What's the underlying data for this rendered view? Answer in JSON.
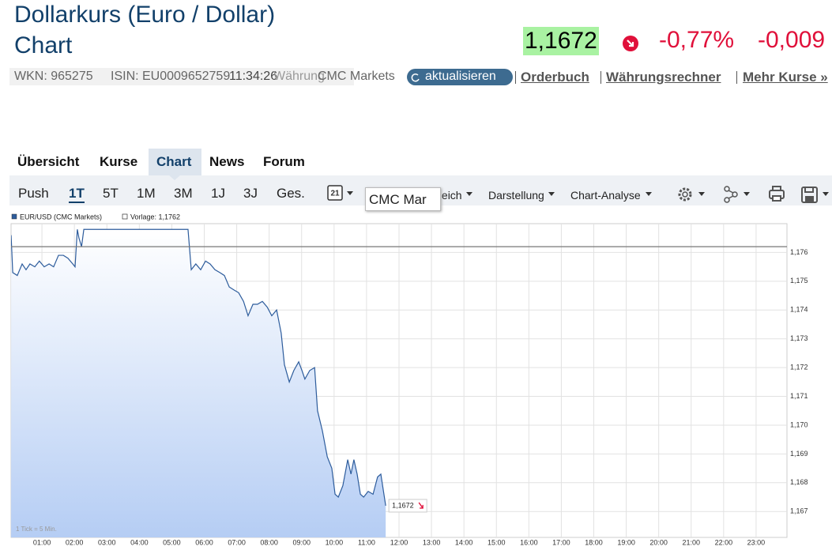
{
  "header": {
    "title": "Dollarkurs (Euro / Dollar)",
    "subtitle": "Chart",
    "price": "1,1672",
    "change_percent": "-0,77%",
    "change_absolute": "-0,009"
  },
  "info_bar": {
    "wkn": "WKN: 965275",
    "isin": "ISIN: EU0009652759",
    "time": "11:34:26",
    "currency": "Währung",
    "exchange": "CMC Markets",
    "refresh_button": "aktualisieren",
    "links": [
      "Orderbuch",
      "Währungsrechner",
      "Mehr Kurse »"
    ]
  },
  "tabs": [
    "Übersicht",
    "Kurse",
    "Chart",
    "News",
    "Forum"
  ],
  "toolbar": {
    "ranges": [
      "Push",
      "1T",
      "5T",
      "1M",
      "3M",
      "1J",
      "3J",
      "Ges."
    ],
    "calendar_day": "21",
    "menus": [
      "Vergleich",
      "Darstellung",
      "Chart-Analyse"
    ],
    "tooltip": "CMC Mar"
  },
  "chart_data": {
    "type": "line",
    "series": [
      {
        "name": "EUR/USD (CMC Markets)",
        "color": "#2d5c9c",
        "x": [
          0.05,
          0.1,
          0.24,
          0.39,
          0.51,
          0.63,
          0.78,
          0.92,
          1.07,
          1.22,
          1.36,
          1.51,
          1.66,
          1.8,
          1.95,
          2.02,
          2.09,
          2.14,
          2.22,
          2.29,
          5.5,
          5.6,
          5.74,
          5.89,
          6.04,
          6.18,
          6.33,
          6.48,
          6.62,
          6.77,
          6.91,
          7.06,
          7.21,
          7.35,
          7.5,
          7.64,
          7.79,
          7.94,
          8.08,
          8.23,
          8.37,
          8.47,
          8.62,
          8.76,
          8.91,
          9.01,
          9.1,
          9.25,
          9.4,
          9.49,
          9.64,
          9.79,
          9.93,
          10.03,
          10.13,
          10.27,
          10.42,
          10.52,
          10.61,
          10.71,
          10.81,
          10.91,
          11.05,
          11.2,
          11.34,
          11.44,
          11.59
        ],
        "values": [
          1.1766,
          1.1753,
          1.1752,
          1.1756,
          1.1754,
          1.1756,
          1.1755,
          1.1757,
          1.1755,
          1.1756,
          1.1755,
          1.1759,
          1.1759,
          1.1758,
          1.1756,
          1.1755,
          1.1768,
          1.1765,
          1.1762,
          1.1768,
          1.1768,
          1.1754,
          1.1756,
          1.1754,
          1.1757,
          1.1756,
          1.1754,
          1.1753,
          1.1752,
          1.1748,
          1.1747,
          1.1746,
          1.1743,
          1.1738,
          1.1742,
          1.1742,
          1.1743,
          1.1741,
          1.1738,
          1.174,
          1.1732,
          1.1721,
          1.1715,
          1.1719,
          1.1722,
          1.1719,
          1.1716,
          1.1719,
          1.172,
          1.1705,
          1.1698,
          1.1689,
          1.1685,
          1.1676,
          1.1675,
          1.1679,
          1.1688,
          1.1683,
          1.1688,
          1.1683,
          1.1676,
          1.1675,
          1.1677,
          1.1676,
          1.1682,
          1.1683,
          1.1672
        ],
        "last_label": "1,1672"
      }
    ],
    "reference_line": {
      "value": 1.1762,
      "label": "Vorlage: 1,1762"
    },
    "note": "1 Tick = 5 Min.",
    "xlim": [
      0,
      24
    ],
    "xticks": [
      {
        "value": 1,
        "label": "01:00"
      },
      {
        "value": 2,
        "label": "02:00"
      },
      {
        "value": 3,
        "label": "03:00"
      },
      {
        "value": 4,
        "label": "04:00"
      },
      {
        "value": 5,
        "label": "05:00"
      },
      {
        "value": 6,
        "label": "06:00"
      },
      {
        "value": 7,
        "label": "07:00"
      },
      {
        "value": 8,
        "label": "08:00"
      },
      {
        "value": 9,
        "label": "09:00"
      },
      {
        "value": 10,
        "label": "10:00"
      },
      {
        "value": 11,
        "label": "11:00"
      },
      {
        "value": 12,
        "label": "12:00"
      },
      {
        "value": 13,
        "label": "13:00"
      },
      {
        "value": 14,
        "label": "14:00"
      },
      {
        "value": 15,
        "label": "15:00"
      },
      {
        "value": 16,
        "label": "16:00"
      },
      {
        "value": 17,
        "label": "17:00"
      },
      {
        "value": 18,
        "label": "18:00"
      },
      {
        "value": 19,
        "label": "19:00"
      },
      {
        "value": 20,
        "label": "20:00"
      },
      {
        "value": 21,
        "label": "21:00"
      },
      {
        "value": 22,
        "label": "22:00"
      },
      {
        "value": 23,
        "label": "23:00"
      }
    ],
    "ylim": [
      1.1661,
      1.177
    ],
    "yticks": [
      {
        "value": 1.167,
        "label": "1,167"
      },
      {
        "value": 1.168,
        "label": "1,168"
      },
      {
        "value": 1.169,
        "label": "1,169"
      },
      {
        "value": 1.17,
        "label": "1,170"
      },
      {
        "value": 1.171,
        "label": "1,171"
      },
      {
        "value": 1.172,
        "label": "1,172"
      },
      {
        "value": 1.173,
        "label": "1,173"
      },
      {
        "value": 1.174,
        "label": "1,174"
      },
      {
        "value": 1.175,
        "label": "1,175"
      },
      {
        "value": 1.176,
        "label": "1,176"
      }
    ],
    "grid": true
  }
}
